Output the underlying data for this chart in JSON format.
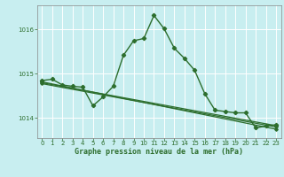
{
  "title": "Graphe pression niveau de la mer (hPa)",
  "background_color": "#c8eef0",
  "grid_color": "#ffffff",
  "line_color": "#2d6e2d",
  "xlim": [
    -0.5,
    23.5
  ],
  "ylim": [
    1013.55,
    1016.55
  ],
  "yticks": [
    1014,
    1015,
    1016
  ],
  "xticks": [
    0,
    1,
    2,
    3,
    4,
    5,
    6,
    7,
    8,
    9,
    10,
    11,
    12,
    13,
    14,
    15,
    16,
    17,
    18,
    19,
    20,
    21,
    22,
    23
  ],
  "series1_x": [
    0,
    1,
    2,
    3,
    4,
    5,
    6,
    7,
    8,
    9,
    10,
    11,
    12,
    13,
    14,
    15,
    16,
    17,
    18,
    19,
    20,
    21,
    22,
    23
  ],
  "series1_y": [
    1014.85,
    1014.88,
    1014.75,
    1014.72,
    1014.7,
    1014.28,
    1014.48,
    1014.72,
    1015.42,
    1015.75,
    1015.8,
    1016.32,
    1016.02,
    1015.58,
    1015.35,
    1015.08,
    1014.55,
    1014.18,
    1014.15,
    1014.12,
    1014.12,
    1013.78,
    1013.82,
    1013.85
  ],
  "trend1_x": [
    0,
    23
  ],
  "trend1_y": [
    1014.82,
    1013.75
  ],
  "trend2_x": [
    0,
    23
  ],
  "trend2_y": [
    1014.8,
    1013.83
  ],
  "trend3_x": [
    0,
    23
  ],
  "trend3_y": [
    1014.78,
    1013.8
  ]
}
